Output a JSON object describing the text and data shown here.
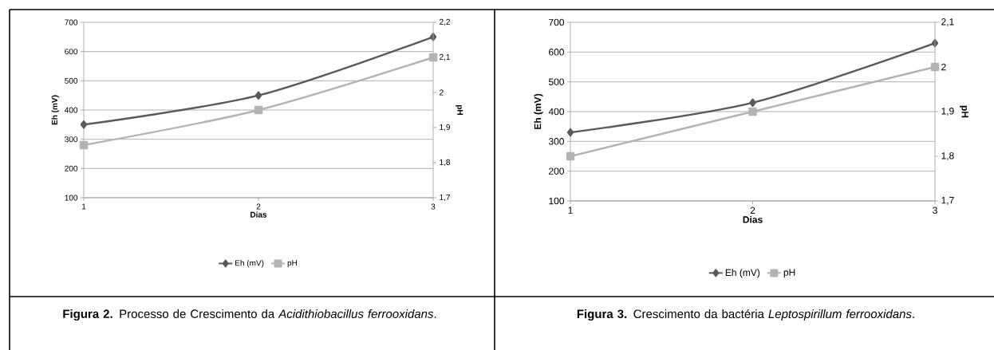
{
  "chart_data": [
    {
      "type": "line",
      "x": [
        1,
        2,
        3
      ],
      "xlim": [
        1,
        3
      ],
      "xticks": [
        1,
        2,
        3
      ],
      "xlabel": "Dias",
      "ylabel": "Eh (mV)",
      "y2label": "pH",
      "ylim": [
        100,
        700
      ],
      "yticks": [
        100,
        200,
        300,
        400,
        500,
        600,
        700
      ],
      "y2lim": [
        1.7,
        2.2
      ],
      "y2ticks": [
        {
          "value": 1.7,
          "label": "1,7"
        },
        {
          "value": 1.8,
          "label": "1,8"
        },
        {
          "value": 1.9,
          "label": "1,9"
        },
        2,
        {
          "value": 2.1,
          "label": "2,1"
        },
        {
          "value": 2.2,
          "label": "2,2"
        }
      ],
      "grid": "y",
      "legend": "bottom",
      "line_style": "solid",
      "series": [
        {
          "name": "Eh (mV)",
          "color": "#595959",
          "marker": "diamond",
          "values": [
            350,
            450,
            650
          ]
        },
        {
          "name": "pH",
          "color": "#b3b3b3",
          "marker": "square",
          "axis": "y2",
          "values": [
            1.85,
            1.95,
            2.1
          ]
        }
      ],
      "annotations": [
        "**Figura 2.** Processo de Crescimento da *Acidithiobacillus ferrooxidans*."
      ]
    },
    {
      "type": "line",
      "x": [
        1,
        2,
        3
      ],
      "xlim": [
        1,
        3
      ],
      "xticks": [
        1,
        2,
        3
      ],
      "xlabel": "Dias",
      "ylabel": "Eh (mV)",
      "y2label": "pH",
      "ylim": [
        100,
        700
      ],
      "yticks": [
        100,
        200,
        300,
        400,
        500,
        600,
        700
      ],
      "y2lim": [
        1.7,
        2.1
      ],
      "y2ticks": [
        {
          "value": 1.7,
          "label": "1,7"
        },
        {
          "value": 1.8,
          "label": "1,8"
        },
        {
          "value": 1.9,
          "label": "1,9"
        },
        2,
        {
          "value": 2.1,
          "label": "2,1"
        }
      ],
      "grid": "y",
      "legend": "bottom",
      "line_style": "solid",
      "series": [
        {
          "name": "Eh (mV)",
          "color": "#595959",
          "marker": "diamond",
          "values": [
            330,
            430,
            630
          ]
        },
        {
          "name": "pH",
          "color": "#b3b3b3",
          "marker": "square",
          "axis": "y2",
          "values": [
            1.8,
            1.9,
            2.0
          ]
        }
      ],
      "annotations": [
        "**Figura 3.** Crescimento da bactéria *Leptospirillum ferrooxidans*."
      ]
    }
  ]
}
